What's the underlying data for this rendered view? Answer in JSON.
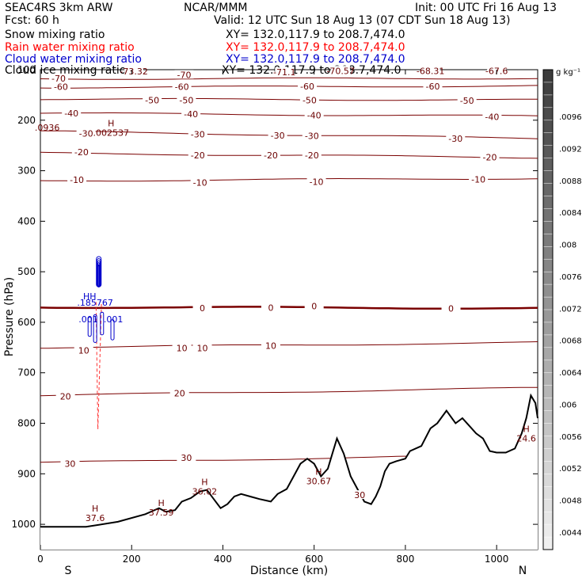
{
  "header": {
    "model": "SEAC4RS 3km ARW",
    "org": "NCAR/MMM",
    "init": "Init: 00 UTC Fri 16 Aug 13",
    "fcst": "Fcst: 60 h",
    "valid": "Valid: 12 UTC Sun 18 Aug 13 (07 CDT Sun 18 Aug 13)",
    "fields": [
      {
        "label": "Snow mixing ratio",
        "xy": "XY= 132.0,117.9 to 208.7,474.0",
        "color": "#000000"
      },
      {
        "label": "Rain water mixing ratio",
        "xy": "XY= 132.0,117.9 to 208.7,474.0",
        "color": "#ff0000"
      },
      {
        "label": "Cloud water mixing ratio",
        "xy": "XY= 132.0,117.9 to 208.7,474.0",
        "color": "#0000cc"
      },
      {
        "label": "Cloud ice mixing ratio",
        "xy": "XY= 132.0,117.9 to 208.7,474.0",
        "color": "#000000"
      }
    ]
  },
  "chart_data": {
    "type": "line",
    "xlabel": "Distance (km)",
    "ylabel": "Pressure (hPa)",
    "xlim": [
      0,
      1090
    ],
    "ylim": [
      1050,
      100
    ],
    "x_ticks": [
      0,
      200,
      400,
      600,
      800,
      1000
    ],
    "y_ticks": [
      100,
      200,
      300,
      400,
      500,
      600,
      700,
      800,
      900,
      1000
    ],
    "endpoints": {
      "left": "S",
      "right": "N"
    },
    "temperature_contours": [
      {
        "level": -70,
        "p_left": 118,
        "p_right": 117
      },
      {
        "level": -60,
        "p_left": 135,
        "p_right": 132
      },
      {
        "level": -50,
        "p_left": 158,
        "p_right": 160
      },
      {
        "level": -40,
        "p_left": 186,
        "p_right": 192
      },
      {
        "level": -30,
        "p_left": 222,
        "p_right": 236
      },
      {
        "level": -20,
        "p_left": 265,
        "p_right": 274
      },
      {
        "level": -10,
        "p_left": 320,
        "p_right": 315
      },
      {
        "level": 0,
        "p_left": 570,
        "p_right": 572,
        "bold": true
      },
      {
        "level": 10,
        "p_left": 650,
        "p_right": 640
      },
      {
        "level": 20,
        "p_left": 745,
        "p_right": 730
      },
      {
        "level": 30,
        "p_left": 878,
        "p_right": 862
      }
    ],
    "contour_labels": [
      {
        "text": "-70",
        "x": 40,
        "p": 117
      },
      {
        "text": "-73.32",
        "x": 205,
        "p": 103
      },
      {
        "text": "-70",
        "x": 315,
        "p": 110
      },
      {
        "text": "-71.1",
        "x": 535,
        "p": 105
      },
      {
        "text": "-70.57",
        "x": 658,
        "p": 102
      },
      {
        "text": "-68.31",
        "x": 855,
        "p": 102
      },
      {
        "text": "-67.6",
        "x": 1000,
        "p": 102
      },
      {
        "text": "-60",
        "x": 45,
        "p": 134
      },
      {
        "text": "-60",
        "x": 310,
        "p": 134
      },
      {
        "text": "-60",
        "x": 585,
        "p": 133
      },
      {
        "text": "-60",
        "x": 860,
        "p": 133
      },
      {
        "text": "-50",
        "x": 245,
        "p": 160
      },
      {
        "text": "-50",
        "x": 320,
        "p": 160
      },
      {
        "text": "-50",
        "x": 590,
        "p": 160
      },
      {
        "text": "-50",
        "x": 935,
        "p": 161
      },
      {
        "text": "-40",
        "x": 68,
        "p": 186
      },
      {
        "text": "-40",
        "x": 330,
        "p": 188
      },
      {
        "text": "-40",
        "x": 600,
        "p": 190
      },
      {
        "text": "-40",
        "x": 990,
        "p": 193
      },
      {
        "text": "-30",
        "x": 100,
        "p": 226
      },
      {
        "text": "-30",
        "x": 345,
        "p": 228
      },
      {
        "text": "-30",
        "x": 520,
        "p": 230
      },
      {
        "text": "-30",
        "x": 595,
        "p": 231
      },
      {
        "text": "-30",
        "x": 910,
        "p": 236
      },
      {
        "text": "-20",
        "x": 90,
        "p": 263
      },
      {
        "text": "-20",
        "x": 345,
        "p": 269
      },
      {
        "text": "-20",
        "x": 505,
        "p": 269
      },
      {
        "text": "-20",
        "x": 595,
        "p": 269
      },
      {
        "text": "-20",
        "x": 985,
        "p": 273
      },
      {
        "text": "-10",
        "x": 80,
        "p": 318
      },
      {
        "text": "-10",
        "x": 350,
        "p": 323
      },
      {
        "text": "-10",
        "x": 605,
        "p": 322
      },
      {
        "text": "-10",
        "x": 960,
        "p": 317
      },
      {
        "text": "0",
        "x": 355,
        "p": 572
      },
      {
        "text": "0",
        "x": 505,
        "p": 571
      },
      {
        "text": "0",
        "x": 600,
        "p": 568
      },
      {
        "text": "0",
        "x": 900,
        "p": 573
      },
      {
        "text": "10",
        "x": 95,
        "p": 656
      },
      {
        "text": "10",
        "x": 310,
        "p": 651
      },
      {
        "text": "10",
        "x": 355,
        "p": 651
      },
      {
        "text": "10",
        "x": 505,
        "p": 646
      },
      {
        "text": "20",
        "x": 55,
        "p": 747
      },
      {
        "text": "20",
        "x": 305,
        "p": 740
      },
      {
        "text": "30",
        "x": 65,
        "p": 880
      },
      {
        "text": "30",
        "x": 320,
        "p": 868
      },
      {
        "text": "30",
        "x": 700,
        "p": 942
      }
    ],
    "extrema": [
      {
        "kind": "H",
        "value": "37.6",
        "x": 120,
        "p": 978
      },
      {
        "kind": "H",
        "value": "37.59",
        "x": 265,
        "p": 967
      },
      {
        "kind": "H",
        "value": "36.02",
        "x": 360,
        "p": 925
      },
      {
        "kind": "H",
        "value": "30.67",
        "x": 610,
        "p": 905
      },
      {
        "kind": "H",
        "value": "24.6",
        "x": 1065,
        "p": 820
      },
      {
        "kind": "H",
        "value": ".002537",
        "x": 155,
        "p": 215
      },
      {
        "kind": "",
        "value": ".0936",
        "x": 15,
        "p": 205
      }
    ],
    "cloud_labels": [
      {
        "text": "HH",
        "x": 108,
        "p": 555
      },
      {
        "text": ".185767",
        "x": 120,
        "p": 567
      },
      {
        "text": ".001",
        "x": 105,
        "p": 600
      },
      {
        "text": ".001",
        "x": 160,
        "p": 600
      }
    ],
    "terrain": [
      [
        0,
        1005
      ],
      [
        100,
        1005
      ],
      [
        170,
        995
      ],
      [
        230,
        980
      ],
      [
        260,
        968
      ],
      [
        275,
        975
      ],
      [
        295,
        972
      ],
      [
        310,
        955
      ],
      [
        330,
        948
      ],
      [
        350,
        935
      ],
      [
        365,
        932
      ],
      [
        380,
        950
      ],
      [
        395,
        968
      ],
      [
        410,
        960
      ],
      [
        425,
        945
      ],
      [
        440,
        940
      ],
      [
        460,
        945
      ],
      [
        480,
        950
      ],
      [
        505,
        955
      ],
      [
        520,
        940
      ],
      [
        540,
        930
      ],
      [
        555,
        905
      ],
      [
        570,
        880
      ],
      [
        585,
        870
      ],
      [
        600,
        880
      ],
      [
        615,
        905
      ],
      [
        630,
        890
      ],
      [
        640,
        860
      ],
      [
        650,
        830
      ],
      [
        665,
        860
      ],
      [
        680,
        905
      ],
      [
        695,
        930
      ],
      [
        710,
        955
      ],
      [
        725,
        960
      ],
      [
        735,
        945
      ],
      [
        745,
        925
      ],
      [
        755,
        895
      ],
      [
        765,
        880
      ],
      [
        780,
        875
      ],
      [
        800,
        870
      ],
      [
        810,
        855
      ],
      [
        835,
        845
      ],
      [
        855,
        810
      ],
      [
        870,
        800
      ],
      [
        890,
        775
      ],
      [
        910,
        800
      ],
      [
        925,
        790
      ],
      [
        940,
        805
      ],
      [
        955,
        820
      ],
      [
        970,
        830
      ],
      [
        985,
        855
      ],
      [
        1000,
        858
      ],
      [
        1020,
        858
      ],
      [
        1040,
        850
      ],
      [
        1055,
        820
      ],
      [
        1065,
        790
      ],
      [
        1075,
        745
      ],
      [
        1085,
        760
      ],
      [
        1090,
        790
      ]
    ],
    "rain_plume": {
      "x_top": 128,
      "p_top": 560,
      "x_bottom": 126,
      "p_bottom": 812
    },
    "colorbar": {
      "unit": "g kg⁻¹",
      "ticks": [
        ".0096",
        ".0092",
        ".0088",
        ".0084",
        ".008",
        ".0076",
        ".0072",
        ".0068",
        ".0064",
        ".006",
        ".0056",
        ".0052",
        ".0048",
        ".0044"
      ]
    },
    "colors": {
      "temperature": "#7a0000",
      "terrain": "#000000",
      "rain": "#ff3333",
      "cloud_water": "#0000cc",
      "frame": "#000000"
    }
  }
}
